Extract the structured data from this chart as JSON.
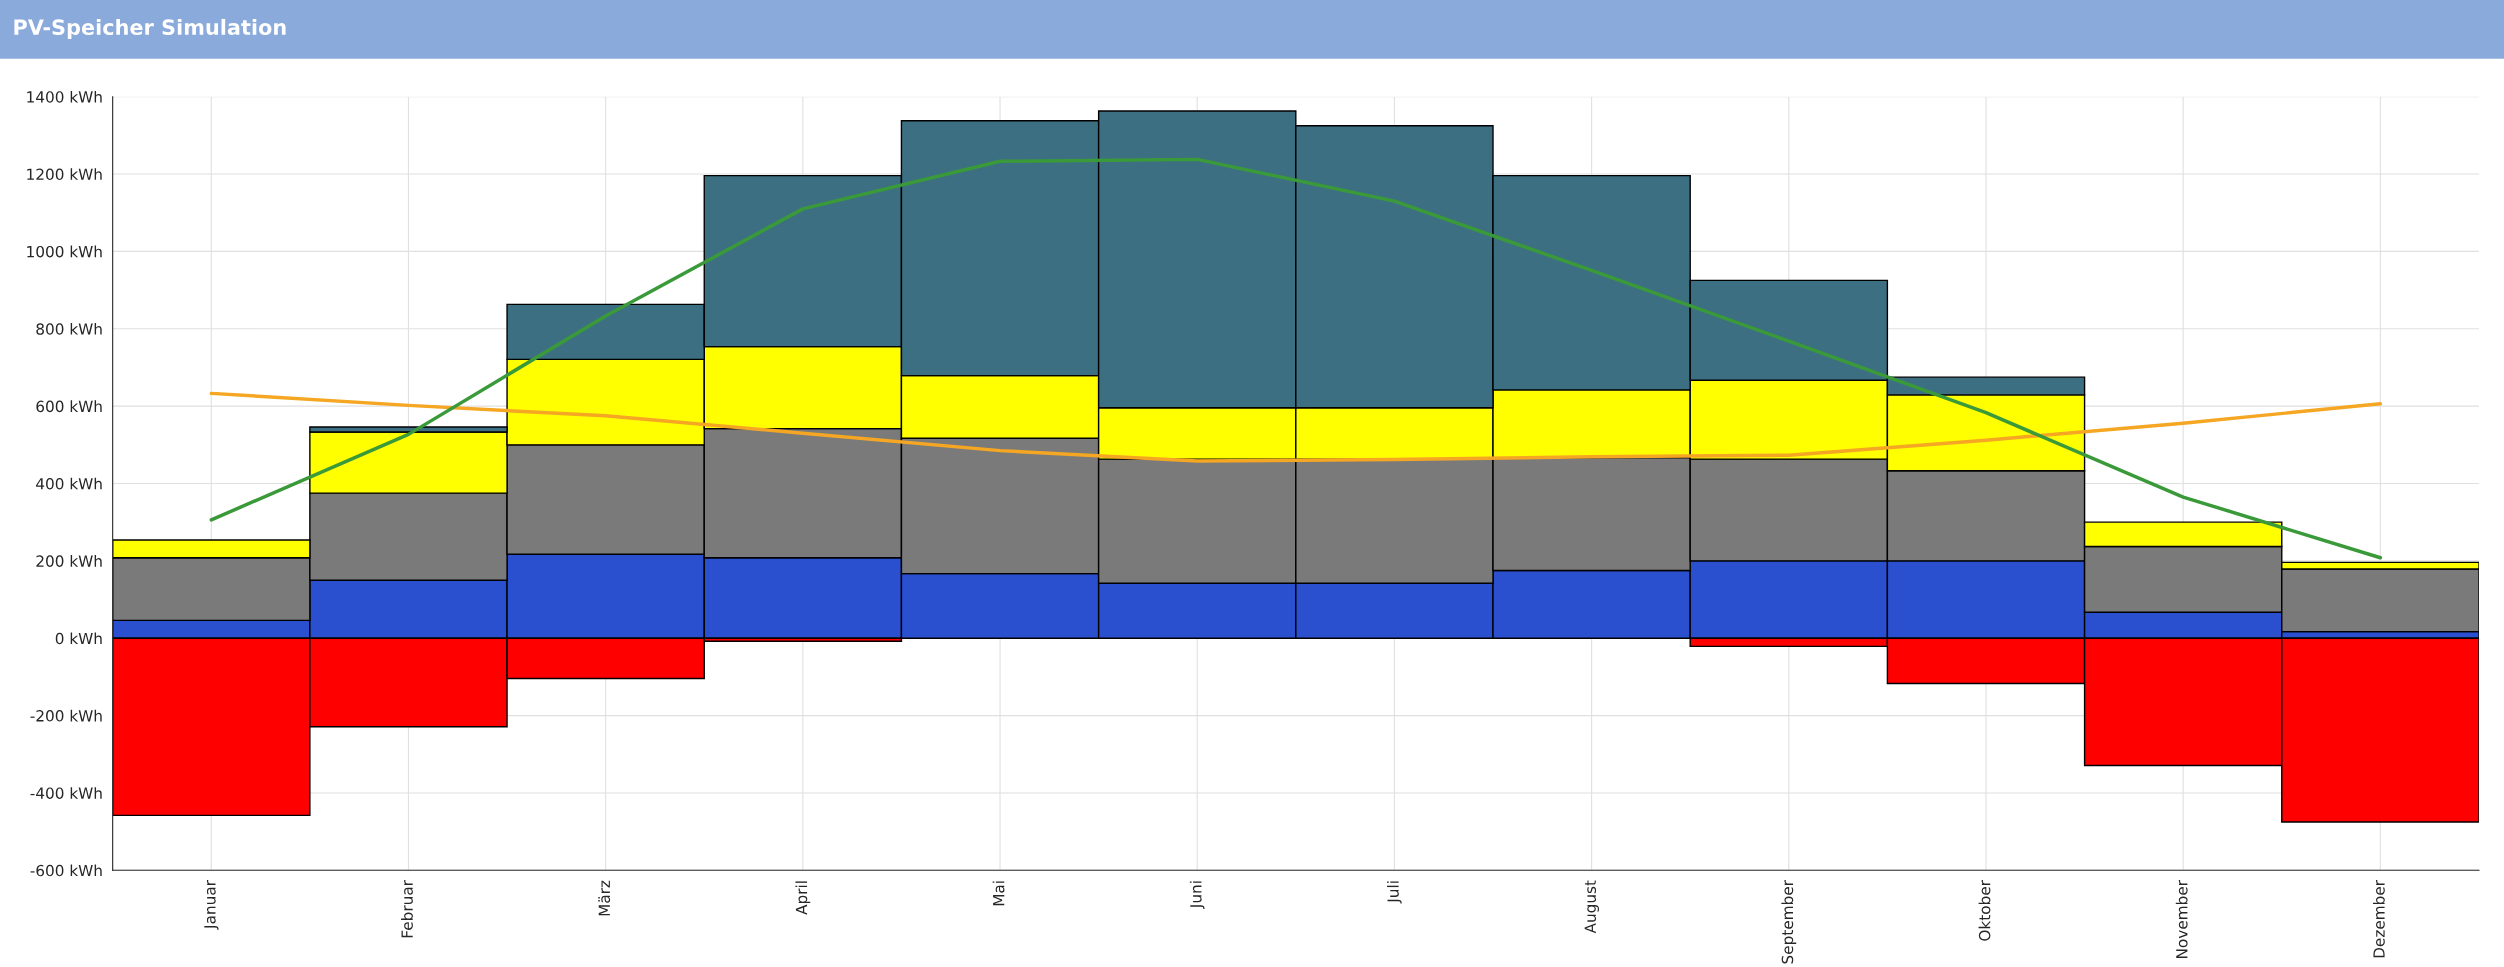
{
  "chart_data": {
    "type": "bar",
    "title": "PV-Speicher Simulation",
    "stacked": true,
    "grid": true,
    "legend": false,
    "categories": [
      "Januar",
      "Februar",
      "März",
      "April",
      "Mai",
      "Juni",
      "Juli",
      "August",
      "September",
      "Oktober",
      "November",
      "Dezember"
    ],
    "ylim": [
      -600,
      1400
    ],
    "yticks": [
      {
        "value": -600,
        "label": "-600 kWh"
      },
      {
        "value": -400,
        "label": "-400 kWh"
      },
      {
        "value": -200,
        "label": "-200 kWh"
      },
      {
        "value": 0,
        "label": "0 kWh"
      },
      {
        "value": 200,
        "label": "200 kWh"
      },
      {
        "value": 400,
        "label": "400 kWh"
      },
      {
        "value": 600,
        "label": "600 kWh"
      },
      {
        "value": 800,
        "label": "800 kWh"
      },
      {
        "value": 1000,
        "label": "1000 kWh"
      },
      {
        "value": 1200,
        "label": "1200 kWh"
      },
      {
        "value": 1400,
        "label": "1400 kWh"
      }
    ],
    "series": [
      {
        "color": "#2a50d0",
        "values": [
          46,
          150,
          217,
          208,
          167,
          142,
          142,
          175,
          200,
          200,
          67,
          17
        ]
      },
      {
        "color": "#7a7a7a",
        "values": [
          162,
          225,
          283,
          334,
          350,
          321,
          321,
          292,
          263,
          233,
          170,
          162
        ]
      },
      {
        "color": "#ffff00",
        "values": [
          46,
          158,
          221,
          212,
          162,
          133,
          133,
          175,
          204,
          196,
          63,
          17
        ]
      },
      {
        "color": "#3d6f82",
        "values": [
          null,
          13,
          142,
          442,
          659,
          767,
          729,
          554,
          258,
          46,
          null,
          null
        ]
      },
      {
        "color": "#ff0000",
        "values": [
          -458,
          -229,
          -104,
          -8,
          null,
          null,
          null,
          null,
          -21,
          -117,
          -329,
          -475
        ]
      },
      {
        "type": "line",
        "color": "#f5a623",
        "values": [
          633,
          602,
          575,
          530,
          485,
          458,
          462,
          469,
          473,
          512,
          556,
          606
        ]
      },
      {
        "type": "line",
        "color": "#3a9a3a",
        "values": [
          306,
          527,
          833,
          1110,
          1233,
          1238,
          1130,
          951,
          768,
          583,
          365,
          208
        ]
      }
    ]
  }
}
